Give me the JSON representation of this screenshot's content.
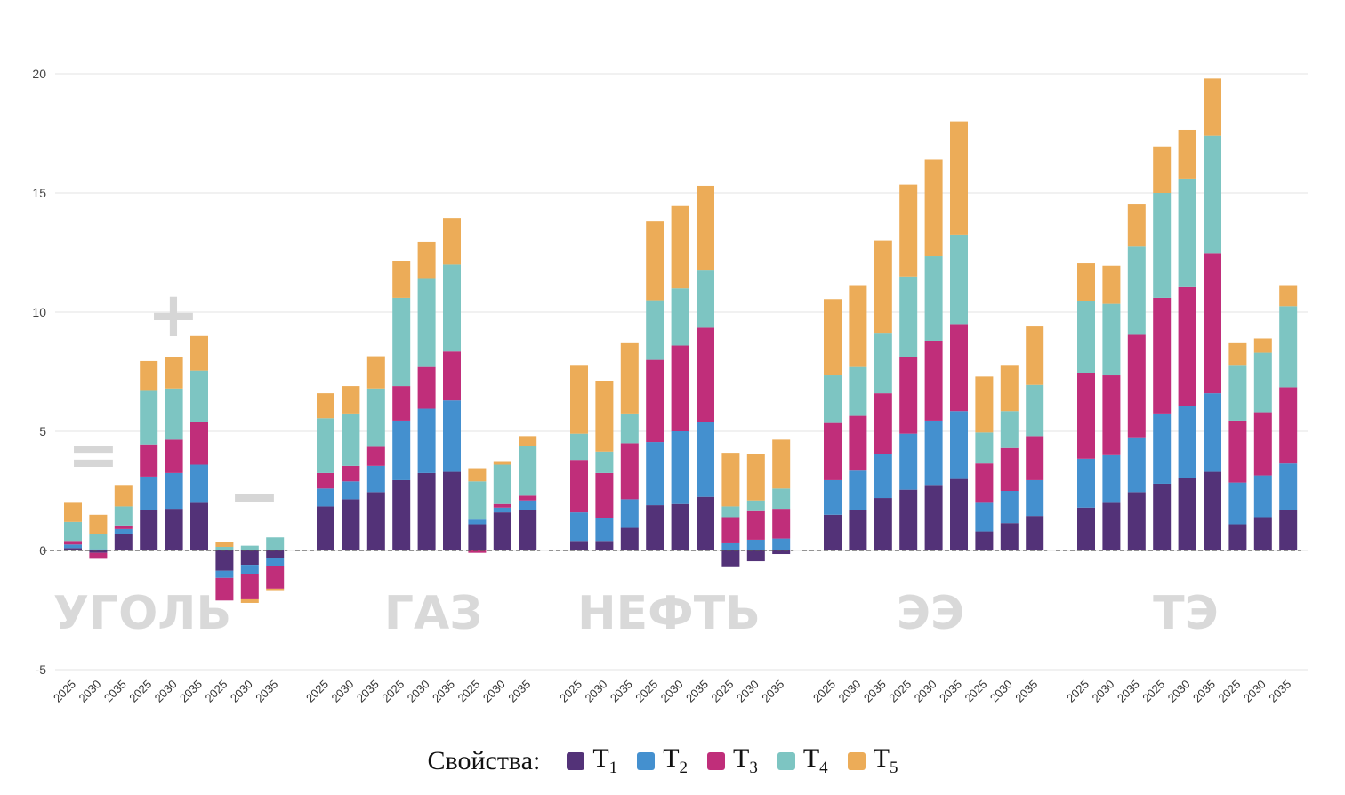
{
  "chart_data": {
    "type": "bar",
    "stacked": true,
    "ylim": [
      -5,
      20
    ],
    "yticks": [
      -5,
      0,
      5,
      10,
      15,
      20
    ],
    "grid": true,
    "years": [
      "2025",
      "2030",
      "2035"
    ],
    "groups": [
      {
        "label": "УГОЛЬ",
        "subgroup_symbols": [
          "=",
          "+",
          "−"
        ]
      },
      {
        "label": "ГАЗ"
      },
      {
        "label": "НЕФТЬ"
      },
      {
        "label": "ЭЭ"
      },
      {
        "label": "ТЭ"
      }
    ],
    "series_names": [
      "T1",
      "T2",
      "T3",
      "T4",
      "T5"
    ],
    "series": [
      {
        "name": "T1",
        "color": "#533278",
        "values": [
          [
            0.1,
            -0.1,
            0.7,
            1.7,
            1.75,
            2.0,
            -0.85,
            -0.6,
            -0.3
          ],
          [
            1.85,
            2.15,
            2.45,
            2.95,
            3.25,
            3.3,
            1.1,
            1.6,
            1.7
          ],
          [
            0.4,
            0.4,
            0.95,
            1.9,
            1.95,
            2.25,
            -0.7,
            -0.45,
            -0.15
          ],
          [
            1.5,
            1.7,
            2.2,
            2.55,
            2.75,
            3.0,
            0.8,
            1.15,
            1.45
          ],
          [
            1.8,
            2.0,
            2.45,
            2.8,
            3.05,
            3.3,
            1.1,
            1.4,
            1.7
          ]
        ]
      },
      {
        "name": "T2",
        "color": "#4490cf",
        "values": [
          [
            0.15,
            0.05,
            0.2,
            1.4,
            1.5,
            1.6,
            -0.3,
            -0.4,
            -0.35
          ],
          [
            0.75,
            0.75,
            1.1,
            2.5,
            2.7,
            3.0,
            0.2,
            0.2,
            0.4
          ],
          [
            1.2,
            0.95,
            1.2,
            2.65,
            3.05,
            3.15,
            0.3,
            0.45,
            0.5
          ],
          [
            1.45,
            1.65,
            1.85,
            2.35,
            2.7,
            2.85,
            1.2,
            1.35,
            1.5
          ],
          [
            2.05,
            2.0,
            2.3,
            2.95,
            3.0,
            3.3,
            1.75,
            1.75,
            1.95
          ]
        ]
      },
      {
        "name": "T3",
        "color": "#c02e7a",
        "values": [
          [
            0.15,
            -0.25,
            0.15,
            1.35,
            1.4,
            1.8,
            -0.95,
            -1.05,
            -0.95
          ],
          [
            0.65,
            0.65,
            0.8,
            1.45,
            1.75,
            2.05,
            -0.1,
            0.15,
            0.2
          ],
          [
            2.2,
            1.9,
            2.35,
            3.45,
            3.6,
            3.95,
            1.1,
            1.2,
            1.25
          ],
          [
            2.4,
            2.3,
            2.55,
            3.2,
            3.35,
            3.65,
            1.65,
            1.8,
            1.85
          ],
          [
            3.6,
            3.35,
            4.3,
            4.85,
            5.0,
            5.85,
            2.6,
            2.65,
            3.2
          ]
        ]
      },
      {
        "name": "T4",
        "color": "#7dc5c2",
        "values": [
          [
            0.8,
            0.65,
            0.8,
            2.25,
            2.15,
            2.15,
            0.15,
            0.2,
            0.55
          ],
          [
            2.3,
            2.2,
            2.45,
            3.7,
            3.7,
            3.65,
            1.6,
            1.65,
            2.1
          ],
          [
            1.1,
            0.9,
            1.25,
            2.5,
            2.4,
            2.4,
            0.45,
            0.45,
            0.85
          ],
          [
            2.0,
            2.05,
            2.5,
            3.4,
            3.55,
            3.75,
            1.3,
            1.55,
            2.15
          ],
          [
            3.0,
            3.0,
            3.7,
            4.4,
            4.55,
            4.95,
            2.3,
            2.5,
            3.4
          ]
        ]
      },
      {
        "name": "T5",
        "color": "#ecac58",
        "values": [
          [
            0.8,
            0.8,
            0.9,
            1.25,
            1.3,
            1.45,
            0.2,
            -0.15,
            -0.1
          ],
          [
            1.05,
            1.15,
            1.35,
            1.55,
            1.55,
            1.95,
            0.55,
            0.15,
            0.4
          ],
          [
            2.85,
            2.95,
            2.95,
            3.3,
            3.45,
            3.55,
            2.25,
            1.95,
            2.05
          ],
          [
            3.2,
            3.4,
            3.9,
            3.85,
            4.05,
            4.75,
            2.35,
            1.9,
            2.45
          ],
          [
            1.6,
            1.6,
            1.8,
            1.95,
            2.05,
            2.4,
            0.95,
            0.6,
            0.85
          ]
        ]
      }
    ]
  },
  "legend": {
    "title": "Свойства:",
    "items": [
      {
        "letter": "T",
        "sub": "1",
        "color": "#533278"
      },
      {
        "letter": "T",
        "sub": "2",
        "color": "#4490cf"
      },
      {
        "letter": "T",
        "sub": "3",
        "color": "#c02e7a"
      },
      {
        "letter": "T",
        "sub": "4",
        "color": "#7dc5c2"
      },
      {
        "letter": "T",
        "sub": "5",
        "color": "#ecac58"
      }
    ]
  }
}
